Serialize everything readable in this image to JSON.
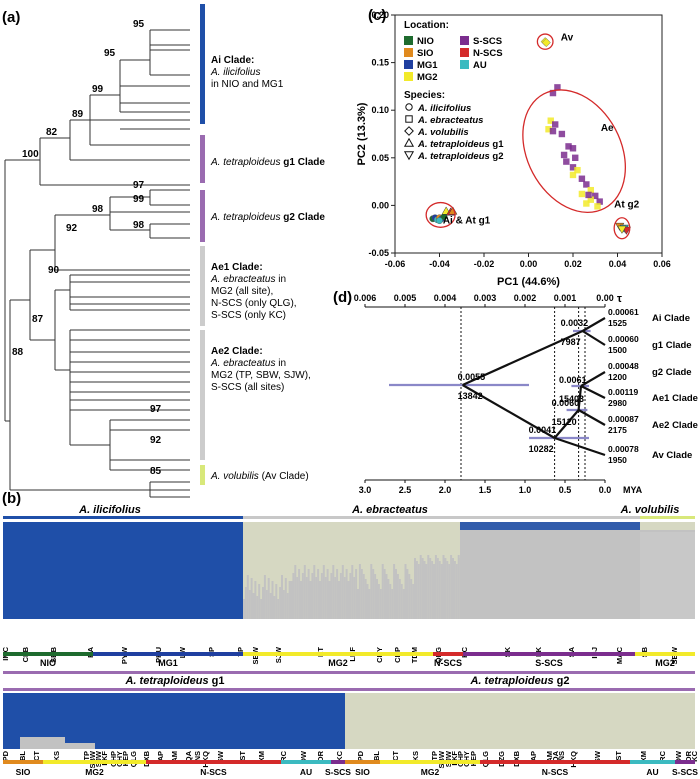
{
  "panel_labels": {
    "a": "(a)",
    "b": "(b)",
    "c": "(c)",
    "d": "(d)"
  },
  "tree": {
    "bootstrap": [
      "95",
      "95",
      "99",
      "89",
      "82",
      "100",
      "97",
      "99",
      "98",
      "98",
      "92",
      "90",
      "87",
      "88",
      "97",
      "92",
      "85"
    ],
    "ai": {
      "title": "Ai Clade:",
      "species": "A. ilicifolius",
      "desc": "in NIO and MG1"
    },
    "g1": {
      "species": "A. tetraploideus",
      "suffix": "g1 Clade"
    },
    "g2": {
      "species": "A. tetraploideus",
      "suffix": "g2 Clade"
    },
    "ae1": {
      "title": "Ae1 Clade:",
      "species": "A. ebracteatus",
      "lines": [
        "in",
        "MG2 (all site),",
        "N-SCS (only QLG),",
        "S-SCS (only KC)"
      ]
    },
    "ae2": {
      "title": "Ae2 Clade:",
      "species": "A. ebracteatus",
      "lines": [
        "in",
        "MG2 (TP, SBW, SJW),",
        "S-SCS (all sites)"
      ]
    },
    "av": {
      "species": "A. volubilis",
      "suffix": "(Av Clade)"
    },
    "colors": {
      "ai": "#1f4fa8",
      "g1": "#9a6bb0",
      "g2": "#9a6bb0",
      "ae1": "#c8c8c8",
      "ae2": "#c8c8c8",
      "av": "#d8e87a"
    }
  },
  "chart_data": [
    {
      "type": "scatter",
      "title": "",
      "xlabel": "PC1 (44.6%)",
      "ylabel": "PC2 (13.3%)",
      "xlim": [
        -0.06,
        0.06
      ],
      "ylim": [
        -0.05,
        0.2
      ],
      "xticks": [
        "-0.06",
        "-0.04",
        "-0.02",
        "0.00",
        "0.02",
        "0.04",
        "0.06"
      ],
      "yticks": [
        "-0.05",
        "0.00",
        "0.05",
        "0.10",
        "0.15",
        "0.20"
      ],
      "legend_location": {
        "title": "Location:",
        "items": [
          {
            "label": "NIO",
            "color": "#1e6b2e"
          },
          {
            "label": "SIO",
            "color": "#e08a1e"
          },
          {
            "label": "MG1",
            "color": "#1f3fa0"
          },
          {
            "label": "MG2",
            "color": "#f2ea2a"
          },
          {
            "label": "S-SCS",
            "color": "#7b2d8e"
          },
          {
            "label": "N-SCS",
            "color": "#d42a2a"
          },
          {
            "label": "AU",
            "color": "#3bbac0"
          }
        ]
      },
      "legend_species": {
        "title": "Species:",
        "items": [
          {
            "label": "A. ilicifolius",
            "shape": "circle",
            "suffix": ""
          },
          {
            "label": "A. ebracteatus",
            "shape": "square",
            "suffix": ""
          },
          {
            "label": "A. volubilis",
            "shape": "diamond",
            "suffix": ""
          },
          {
            "label": "A. tetraploideus",
            "shape": "triangle",
            "suffix": "g1"
          },
          {
            "label": "A. tetraploideus",
            "shape": "invtriangle",
            "suffix": "g2"
          }
        ]
      },
      "groups": [
        {
          "name": "Av",
          "cx": 0.0075,
          "cy": 0.172,
          "rx": 0.0035,
          "ry": 0.008
        },
        {
          "name": "Ae",
          "cx": 0.0205,
          "cy": 0.057,
          "rx": 0.021,
          "ry": 0.068
        },
        {
          "name": "At g2",
          "cx": 0.042,
          "cy": -0.024,
          "rx": 0.0035,
          "ry": 0.011
        },
        {
          "name": "Ai & At g1",
          "cx": -0.0395,
          "cy": -0.01,
          "rx": 0.0065,
          "ry": 0.013
        }
      ],
      "points": [
        {
          "x": -0.043,
          "y": -0.014,
          "shape": "circle",
          "loc": "NIO"
        },
        {
          "x": -0.042,
          "y": -0.013,
          "shape": "circle",
          "loc": "MG1"
        },
        {
          "x": -0.041,
          "y": -0.015,
          "shape": "circle",
          "loc": "AU"
        },
        {
          "x": -0.04,
          "y": -0.013,
          "shape": "circle",
          "loc": "SIO"
        },
        {
          "x": -0.039,
          "y": -0.014,
          "shape": "circle",
          "loc": "MG1"
        },
        {
          "x": -0.038,
          "y": -0.012,
          "shape": "circle",
          "loc": "NIO"
        },
        {
          "x": -0.04,
          "y": -0.016,
          "shape": "circle",
          "loc": "AU"
        },
        {
          "x": -0.037,
          "y": -0.006,
          "shape": "triangle",
          "loc": "MG2"
        },
        {
          "x": -0.035,
          "y": -0.007,
          "shape": "triangle",
          "loc": "N-SCS"
        },
        {
          "x": -0.034,
          "y": -0.006,
          "shape": "triangle",
          "loc": "SIO"
        },
        {
          "x": 0.0075,
          "y": 0.172,
          "shape": "diamond",
          "loc": "MG2"
        },
        {
          "x": 0.008,
          "y": 0.171,
          "shape": "diamond",
          "loc": "MG2"
        },
        {
          "x": 0.013,
          "y": 0.124,
          "shape": "square",
          "loc": "S-SCS"
        },
        {
          "x": 0.011,
          "y": 0.118,
          "shape": "square",
          "loc": "S-SCS"
        },
        {
          "x": 0.01,
          "y": 0.089,
          "shape": "square",
          "loc": "MG2"
        },
        {
          "x": 0.012,
          "y": 0.085,
          "shape": "square",
          "loc": "S-SCS"
        },
        {
          "x": 0.009,
          "y": 0.08,
          "shape": "square",
          "loc": "MG2"
        },
        {
          "x": 0.011,
          "y": 0.078,
          "shape": "square",
          "loc": "S-SCS"
        },
        {
          "x": 0.015,
          "y": 0.075,
          "shape": "square",
          "loc": "S-SCS"
        },
        {
          "x": 0.018,
          "y": 0.062,
          "shape": "square",
          "loc": "S-SCS"
        },
        {
          "x": 0.02,
          "y": 0.06,
          "shape": "square",
          "loc": "S-SCS"
        },
        {
          "x": 0.016,
          "y": 0.053,
          "shape": "square",
          "loc": "S-SCS"
        },
        {
          "x": 0.021,
          "y": 0.05,
          "shape": "square",
          "loc": "S-SCS"
        },
        {
          "x": 0.017,
          "y": 0.046,
          "shape": "square",
          "loc": "S-SCS"
        },
        {
          "x": 0.02,
          "y": 0.04,
          "shape": "square",
          "loc": "S-SCS"
        },
        {
          "x": 0.022,
          "y": 0.037,
          "shape": "square",
          "loc": "MG2"
        },
        {
          "x": 0.02,
          "y": 0.032,
          "shape": "square",
          "loc": "MG2"
        },
        {
          "x": 0.024,
          "y": 0.028,
          "shape": "square",
          "loc": "S-SCS"
        },
        {
          "x": 0.026,
          "y": 0.022,
          "shape": "square",
          "loc": "S-SCS"
        },
        {
          "x": 0.028,
          "y": 0.016,
          "shape": "square",
          "loc": "MG2"
        },
        {
          "x": 0.024,
          "y": 0.012,
          "shape": "square",
          "loc": "MG2"
        },
        {
          "x": 0.03,
          "y": 0.01,
          "shape": "square",
          "loc": "S-SCS"
        },
        {
          "x": 0.028,
          "y": 0.006,
          "shape": "square",
          "loc": "MG2"
        },
        {
          "x": 0.032,
          "y": 0.004,
          "shape": "square",
          "loc": "S-SCS"
        },
        {
          "x": 0.031,
          "y": -0.001,
          "shape": "square",
          "loc": "MG2"
        },
        {
          "x": 0.026,
          "y": 0.002,
          "shape": "square",
          "loc": "MG2"
        },
        {
          "x": 0.027,
          "y": 0.011,
          "shape": "square",
          "loc": "S-SCS"
        },
        {
          "x": 0.041,
          "y": -0.022,
          "shape": "invtriangle",
          "loc": "SIO"
        },
        {
          "x": 0.043,
          "y": -0.024,
          "shape": "invtriangle",
          "loc": "AU"
        },
        {
          "x": 0.044,
          "y": -0.026,
          "shape": "invtriangle",
          "loc": "N-SCS"
        },
        {
          "x": 0.042,
          "y": -0.025,
          "shape": "invtriangle",
          "loc": "MG2"
        }
      ]
    },
    {
      "type": "line",
      "title": "",
      "top_axis_label": "τ",
      "top_ticks": [
        "0.006",
        "0.005",
        "0.004",
        "0.003",
        "0.002",
        "0.001",
        "0.00"
      ],
      "tau_range": [
        0.006,
        0.0
      ],
      "bottom_axis_label": "MYA",
      "bottom_ticks": [
        "3.0",
        "2.5",
        "2.0",
        "1.5",
        "1.0",
        "0.5",
        "0.0"
      ],
      "mya_range": [
        3.0,
        0.0
      ],
      "tips": [
        {
          "label": "Ai Clade",
          "tau": "0.00061",
          "n": "1525"
        },
        {
          "label": "g1 Clade",
          "tau": "0.00060",
          "n": "1500"
        },
        {
          "label": "g2 Clade",
          "tau": "0.00048",
          "n": "1200"
        },
        {
          "label": "Ae1 Clade",
          "tau": "0.00119",
          "n": "2980"
        },
        {
          "label": "Ae2 Clade",
          "tau": "0.00087",
          "n": "2175"
        },
        {
          "label": "Av Clade",
          "tau": "0.00078",
          "n": "1950"
        }
      ],
      "nodes": [
        {
          "tau": "0.0032",
          "n": "7987",
          "mya": 0.28,
          "err": [
            0.4,
            0.18
          ]
        },
        {
          "tau": "0.0055",
          "n": "13842",
          "mya": 1.78,
          "err": [
            2.7,
            0.95
          ]
        },
        {
          "tau": "0.0061",
          "n": "15403",
          "mya": 0.3,
          "err": [
            0.42,
            0.2
          ]
        },
        {
          "tau": "0.0060",
          "n": "15120",
          "mya": 0.33,
          "err": [
            0.48,
            0.22
          ]
        },
        {
          "tau": "0.0041",
          "n": "10282",
          "mya": 0.63,
          "err": [
            0.95,
            0.2
          ]
        }
      ],
      "dashed_lines_mya": [
        1.8,
        0.63,
        0.33,
        0.25
      ]
    }
  ],
  "structure": {
    "top_species": [
      "A. ilicifolius",
      "A. ebracteatus",
      "A. volubilis"
    ],
    "top_sites": [
      "IMC",
      "CLB",
      "SBB",
      "RA",
      "PYW",
      "PHU",
      "LW",
      "SP",
      "TP",
      "SBW",
      "SJW",
      "KT",
      "LKF",
      "CHY",
      "CHP",
      "TDM",
      "QLG",
      "KC",
      "SK",
      "LK",
      "SA",
      "IBJ",
      "MAC",
      "SB",
      "SBW"
    ],
    "top_regions": [
      {
        "label": "NIO",
        "color": "#1e6b2e"
      },
      {
        "label": "MG1",
        "color": "#1f3fa0"
      },
      {
        "label": "MG2",
        "color": "#f2ea2a"
      },
      {
        "label": "N-SCS",
        "color": "#d42a2a"
      },
      {
        "label": "S-SCS",
        "color": "#7b2d8e"
      },
      {
        "label": "MG2",
        "color": "#f2ea2a"
      }
    ],
    "bottom_groups": [
      "A. tetraploideus",
      "g1",
      "A. tetraploideus",
      "g2"
    ],
    "bottom_sites_g1": [
      "PD",
      "BL",
      "ICT",
      "KS",
      "TP",
      "SBW",
      "SJW",
      "LKF",
      "CHP",
      "CHY",
      "KEP",
      "QLG",
      "DXB",
      "AP",
      "AM",
      "QA",
      "NS",
      "HKQ",
      "SW",
      "ST",
      "XM",
      "RC",
      "DW",
      "DR",
      "KC"
    ],
    "bottom_sites_g2": [
      "SIO",
      "PD",
      "BL",
      "ICT",
      "KS",
      "TP",
      "SBW",
      "SJW",
      "LKF",
      "CHP",
      "CHY",
      "KEP",
      "QLG",
      "DZG",
      "DXB",
      "AP",
      "AM",
      "QA",
      "NS",
      "HKQ",
      "SW",
      "ST",
      "XM",
      "RC",
      "DW",
      "DR",
      "KC"
    ],
    "bottom_regions_g1": [
      {
        "label": "SIO",
        "color": "#e08a1e"
      },
      {
        "label": "MG2",
        "color": "#f2ea2a"
      },
      {
        "label": "N-SCS",
        "color": "#d42a2a"
      },
      {
        "label": "AU",
        "color": "#3bbac0"
      },
      {
        "label": "S-SCS",
        "color": "#7b2d8e"
      }
    ],
    "bottom_regions_g2": [
      {
        "label": "SIO",
        "color": "#e08a1e"
      },
      {
        "label": "MG2",
        "color": "#f2ea2a"
      },
      {
        "label": "N-SCS",
        "color": "#d42a2a"
      },
      {
        "label": "AU",
        "color": "#3bbac0"
      },
      {
        "label": "S-SCS",
        "color": "#7b2d8e"
      }
    ],
    "colors": {
      "blue": "#1f4fa8",
      "gray": "#c2c2c2",
      "cream": "#d6d8c2"
    }
  }
}
